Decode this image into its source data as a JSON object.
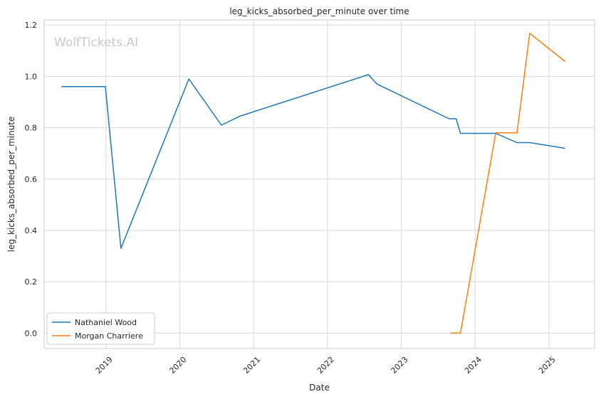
{
  "chart_data": {
    "type": "line",
    "title": "leg_kicks_absorbed_per_minute over time",
    "xlabel": "Date",
    "ylabel": "leg_kicks_absorbed_per_minute",
    "watermark": "WolfTickets.AI",
    "x_ticks": [
      "2019",
      "2020",
      "2021",
      "2022",
      "2023",
      "2024",
      "2025"
    ],
    "y_ticks": [
      "0.0",
      "0.2",
      "0.4",
      "0.6",
      "0.8",
      "1.0",
      "1.2"
    ],
    "xlim": [
      "2018-03-01",
      "2025-08-15"
    ],
    "ylim": [
      -0.06,
      1.22
    ],
    "grid": true,
    "legend_position": "lower-left",
    "series": [
      {
        "name": "Nathaniel Wood",
        "color": "#1f77b4",
        "points": [
          {
            "x": "2018-05-26",
            "y": 0.96
          },
          {
            "x": "2018-12-29",
            "y": 0.96
          },
          {
            "x": "2019-03-16",
            "y": 0.33
          },
          {
            "x": "2020-02-15",
            "y": 0.99
          },
          {
            "x": "2020-07-25",
            "y": 0.81
          },
          {
            "x": "2020-10-24",
            "y": 0.845
          },
          {
            "x": "2022-07-23",
            "y": 1.007
          },
          {
            "x": "2022-09-03",
            "y": 0.97
          },
          {
            "x": "2023-08-26",
            "y": 0.835
          },
          {
            "x": "2023-09-30",
            "y": 0.835
          },
          {
            "x": "2023-10-21",
            "y": 0.778
          },
          {
            "x": "2024-04-13",
            "y": 0.778
          },
          {
            "x": "2024-07-27",
            "y": 0.742
          },
          {
            "x": "2024-09-28",
            "y": 0.742
          },
          {
            "x": "2025-03-22",
            "y": 0.72
          }
        ]
      },
      {
        "name": "Morgan Charriere",
        "color": "#ff7f0e",
        "points": [
          {
            "x": "2023-09-02",
            "y": 0.0
          },
          {
            "x": "2023-10-21",
            "y": 0.0
          },
          {
            "x": "2024-04-13",
            "y": 0.78
          },
          {
            "x": "2024-07-27",
            "y": 0.78
          },
          {
            "x": "2024-09-28",
            "y": 1.168
          },
          {
            "x": "2025-03-22",
            "y": 1.058
          }
        ]
      }
    ]
  }
}
